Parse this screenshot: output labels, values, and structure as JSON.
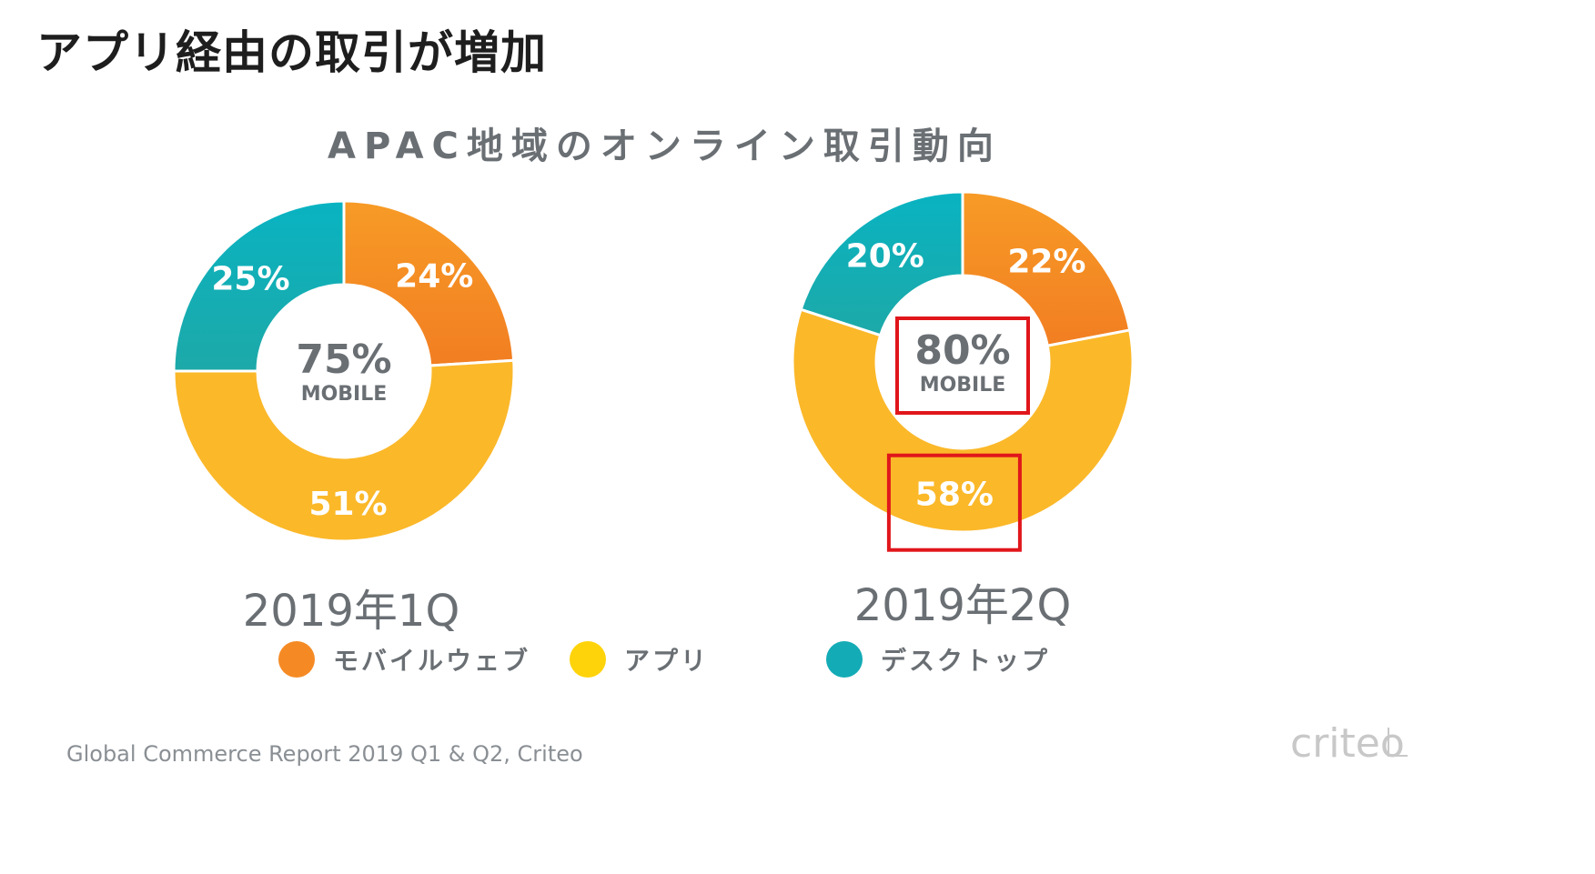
{
  "page": {
    "title": "アプリ経由の取引が増加",
    "source": "Global Commerce Report 2019 Q1 & Q2, Criteo",
    "brand": "criteo"
  },
  "colors": {
    "mobile_web": "#F58A24",
    "app": "#FBB829",
    "desktop": "#13ABB6",
    "highlight": "#E0161B",
    "text": "#6a6f74"
  },
  "chart_data": [
    {
      "type": "pie",
      "title": "APAC地域のオンライン取引動向",
      "period": "2019年1Q",
      "center_value": "75%",
      "center_label": "MOBILE",
      "slices": [
        {
          "label": "モバイルウェブ",
          "value": 24,
          "display": "24%",
          "color": "#F58A24"
        },
        {
          "label": "アプリ",
          "value": 51,
          "display": "51%",
          "color": "#FBB829"
        },
        {
          "label": "デスクトップ",
          "value": 25,
          "display": "25%",
          "color": "#13ABB6"
        }
      ]
    },
    {
      "type": "pie",
      "title": "APAC地域のオンライン取引動向",
      "period": "2019年2Q",
      "center_value": "80%",
      "center_label": "MOBILE",
      "slices": [
        {
          "label": "モバイルウェブ",
          "value": 22,
          "display": "22%",
          "color": "#F58A24"
        },
        {
          "label": "アプリ",
          "value": 58,
          "display": "58%",
          "color": "#FBB829"
        },
        {
          "label": "デスクトップ",
          "value": 20,
          "display": "20%",
          "color": "#13ABB6"
        }
      ],
      "highlighted": [
        "center_value",
        "アプリ"
      ]
    }
  ],
  "legend": [
    {
      "label": "モバイルウェブ",
      "color": "#F58A24"
    },
    {
      "label": "アプリ",
      "color": "#FFD30A"
    },
    {
      "label": "デスクトップ",
      "color": "#13ABB6"
    }
  ]
}
